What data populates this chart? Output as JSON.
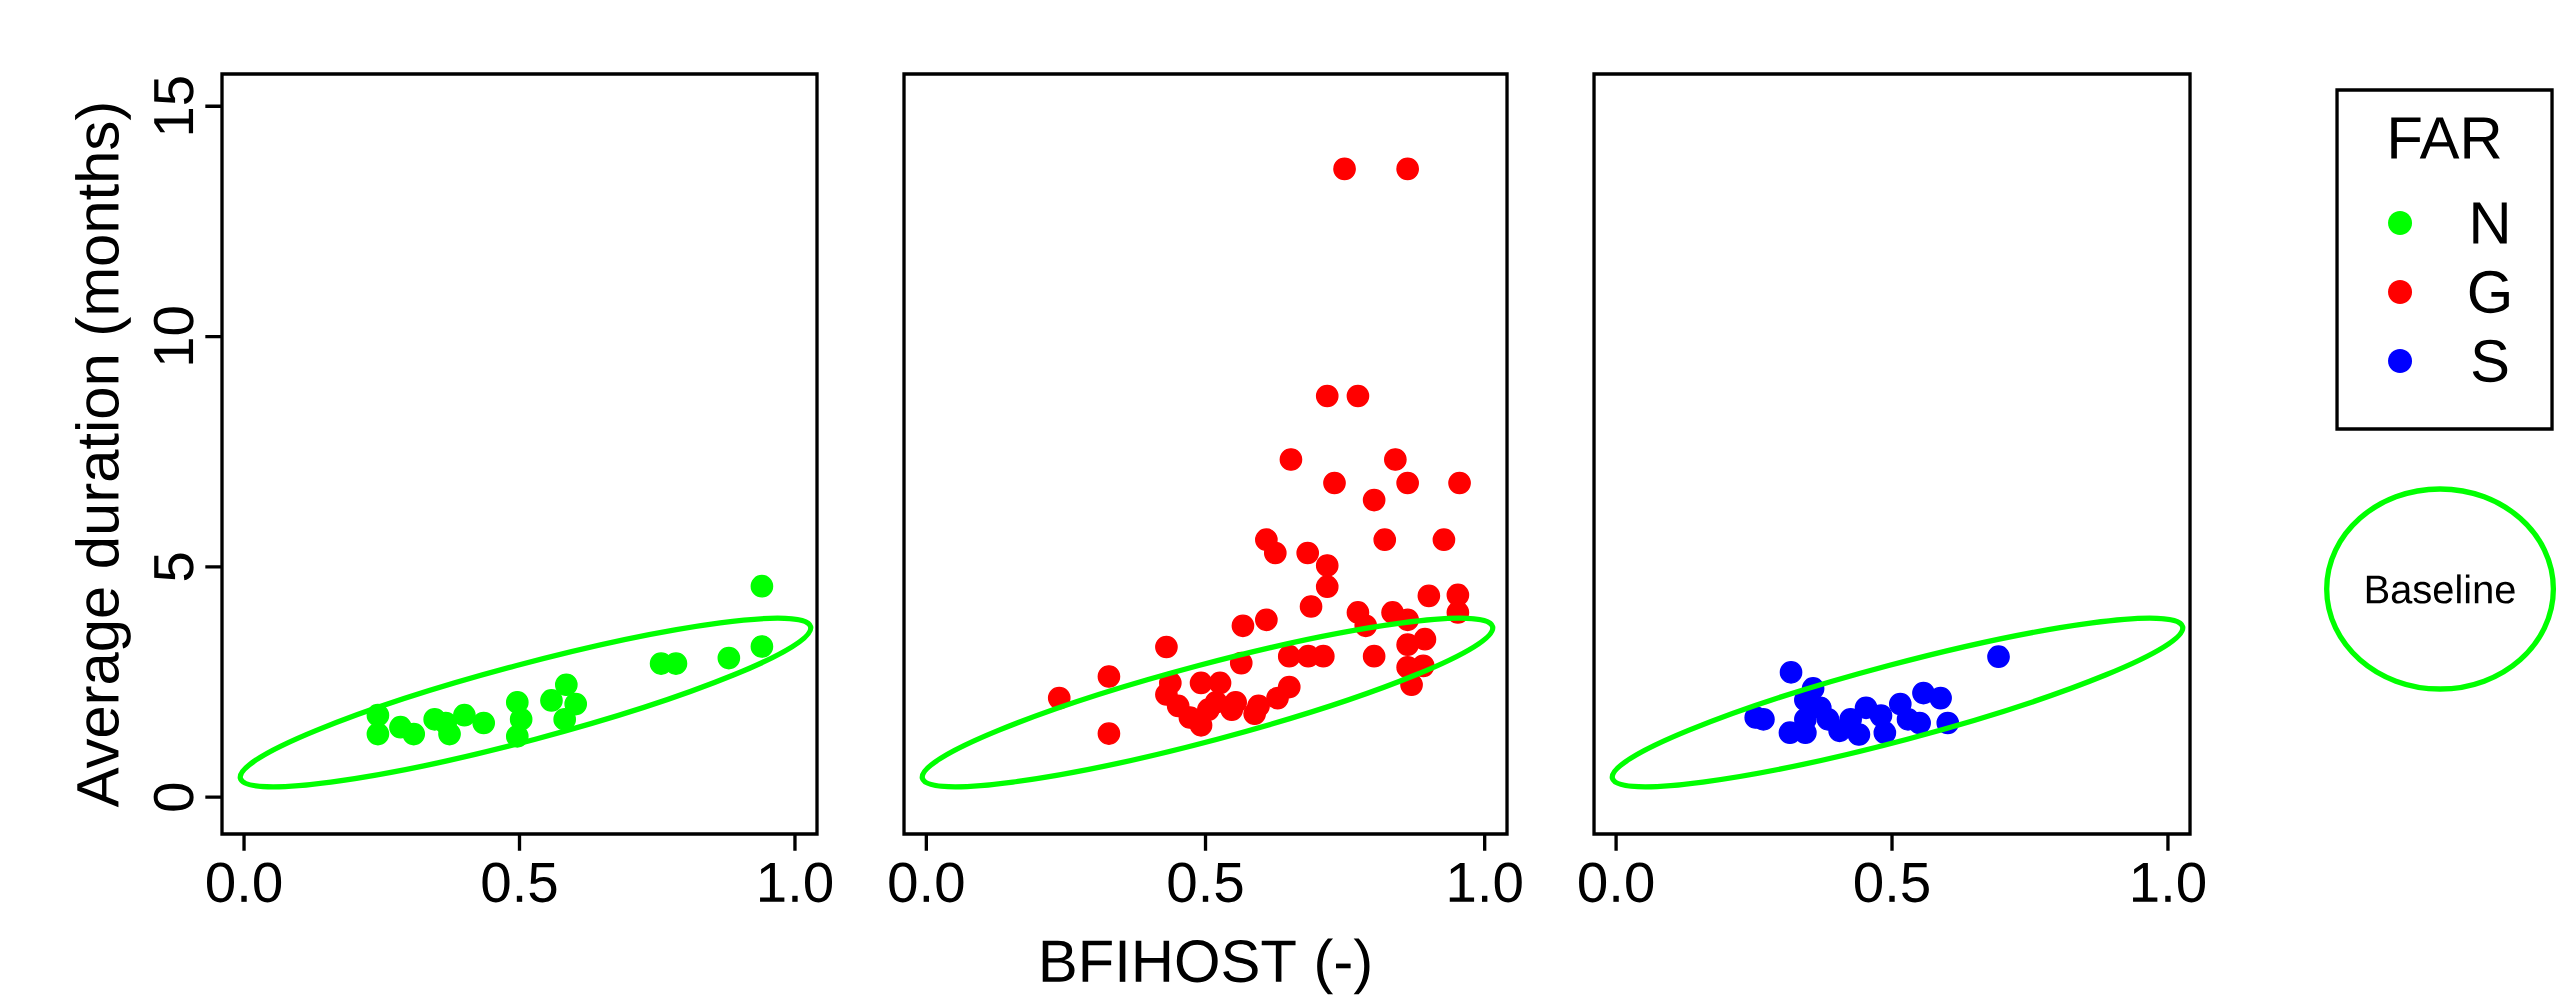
{
  "chart_data": [
    {
      "type": "scatter",
      "ylabel": "Average duration (months)",
      "xlim": [
        -0.04,
        1.04
      ],
      "ylim": [
        -0.8,
        15.7
      ],
      "xticks": [
        {
          "value": 0,
          "label": "0.0"
        },
        {
          "value": 0.5,
          "label": "0.5"
        },
        {
          "value": 1,
          "label": "1.0"
        }
      ],
      "yticks": [
        0,
        5,
        10,
        15
      ],
      "marker": "circle",
      "grid": false,
      "series": [
        {
          "name": "N",
          "color": "#00ff00",
          "x": [
            0.94,
            0.94,
            0.88,
            0.757,
            0.784,
            0.585,
            0.602,
            0.558,
            0.582,
            0.496,
            0.503,
            0.496,
            0.435,
            0.4,
            0.366,
            0.373,
            0.346,
            0.308,
            0.284,
            0.243,
            0.243
          ],
          "values": [
            4.58,
            3.27,
            3.02,
            2.9,
            2.9,
            2.44,
            2.02,
            2.1,
            1.69,
            2.06,
            1.69,
            1.32,
            1.61,
            1.78,
            1.61,
            1.37,
            1.69,
            1.37,
            1.52,
            1.78,
            1.37
          ]
        }
      ]
    },
    {
      "type": "scatter",
      "xlabel": "BFIHOST (-)",
      "xlim": [
        -0.04,
        1.04
      ],
      "ylim": [
        -0.8,
        15.7
      ],
      "xticks": [
        {
          "value": 0,
          "label": "0.0"
        },
        {
          "value": 0.5,
          "label": "0.5"
        },
        {
          "value": 1,
          "label": "1.0"
        }
      ],
      "tick_labels": "x",
      "marker": "circle",
      "grid": false,
      "series": [
        {
          "name": "G",
          "color": "#ff0000",
          "x": [
            0.749,
            0.862,
            0.718,
            0.773,
            0.653,
            0.84,
            0.731,
            0.862,
            0.955,
            0.802,
            0.821,
            0.927,
            0.609,
            0.625,
            0.683,
            0.718,
            0.718,
            0.689,
            0.9,
            0.952,
            0.952,
            0.609,
            0.567,
            0.43,
            0.327,
            0.238,
            0.327,
            0.773,
            0.787,
            0.835,
            0.862,
            0.893,
            0.862,
            0.802,
            0.862,
            0.89,
            0.869,
            0.711,
            0.684,
            0.65,
            0.564,
            0.65,
            0.629,
            0.595,
            0.588,
            0.554,
            0.547,
            0.526,
            0.492,
            0.492,
            0.472,
            0.451,
            0.43,
            0.437,
            0.505,
            0.519
          ],
          "values": [
            13.64,
            13.64,
            8.71,
            8.71,
            7.33,
            7.33,
            6.82,
            6.82,
            6.82,
            6.45,
            5.59,
            5.59,
            5.59,
            5.3,
            5.3,
            5.03,
            4.57,
            4.14,
            4.37,
            4.39,
            4.01,
            3.85,
            3.72,
            3.26,
            2.62,
            2.15,
            1.38,
            4.01,
            3.72,
            4.01,
            3.85,
            3.43,
            3.31,
            3.06,
            2.82,
            2.85,
            2.44,
            3.06,
            3.06,
            3.06,
            2.91,
            2.39,
            2.15,
            1.98,
            1.81,
            2.06,
            1.9,
            2.48,
            2.48,
            1.56,
            1.73,
            1.98,
            2.23,
            2.48,
            1.9,
            2.06
          ]
        }
      ]
    },
    {
      "type": "scatter",
      "xlim": [
        -0.04,
        1.04
      ],
      "ylim": [
        -0.8,
        15.7
      ],
      "xticks": [
        {
          "value": 0,
          "label": "0.0"
        },
        {
          "value": 0.5,
          "label": "0.5"
        },
        {
          "value": 1,
          "label": "1.0"
        }
      ],
      "tick_labels": "x",
      "marker": "circle",
      "grid": false,
      "legend": "right",
      "legend_title": "FAR",
      "series": [
        {
          "name": "S",
          "color": "#0000ff",
          "x": [
            0.693,
            0.317,
            0.267,
            0.253,
            0.315,
            0.343,
            0.357,
            0.343,
            0.37,
            0.384,
            0.343,
            0.405,
            0.44,
            0.453,
            0.48,
            0.487,
            0.515,
            0.529,
            0.557,
            0.55,
            0.588,
            0.601,
            0.425
          ],
          "values": [
            3.05,
            2.71,
            1.69,
            1.73,
            1.4,
            1.4,
            2.36,
            2.11,
            1.94,
            1.69,
            1.69,
            1.44,
            1.36,
            1.94,
            1.77,
            1.4,
            2.02,
            1.69,
            2.26,
            1.61,
            2.15,
            1.61,
            1.69
          ]
        }
      ],
      "annotations": [
        "Baseline"
      ]
    }
  ]
}
